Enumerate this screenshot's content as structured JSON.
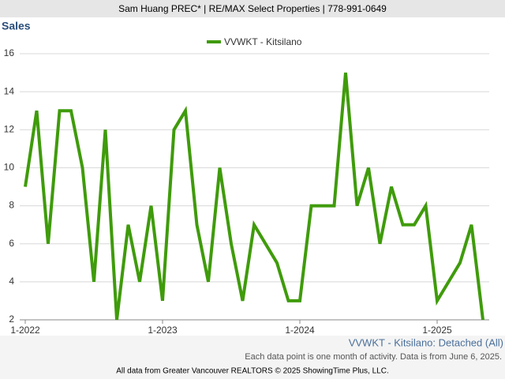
{
  "header": "Sam Huang PREC* | RE/MAX Select Properties | 778-991-0649",
  "chart_data": {
    "type": "line",
    "title": "Sales",
    "categories": [
      "1-2022",
      null,
      null,
      null,
      null,
      null,
      null,
      null,
      null,
      null,
      null,
      null,
      "1-2023",
      null,
      null,
      null,
      null,
      null,
      null,
      null,
      null,
      null,
      null,
      null,
      "1-2024",
      null,
      null,
      null,
      null,
      null,
      null,
      null,
      null,
      null,
      null,
      null,
      "1-2025",
      null,
      null,
      null,
      null
    ],
    "series": [
      {
        "name": "VVWKT - Kitsilano",
        "color": "#3f9b0b",
        "values": [
          9,
          13,
          6,
          13,
          13,
          10,
          4,
          12,
          2,
          7,
          4,
          8,
          3,
          12,
          13,
          7,
          4,
          10,
          6,
          3,
          7,
          6,
          5,
          3,
          3,
          8,
          8,
          8,
          15,
          8,
          10,
          6,
          9,
          7,
          7,
          8,
          3,
          4,
          5,
          7,
          2
        ]
      }
    ],
    "ylim": [
      2,
      16
    ],
    "yticks": [
      2,
      4,
      6,
      8,
      10,
      12,
      14,
      16
    ],
    "grid": true,
    "legend": "top"
  },
  "footer": {
    "subtitle": "VVWKT - Kitsilano: Detached (All)",
    "note": "Each data point is one month of activity. Data is from June 6, 2025.",
    "credit": "All data from Greater Vancouver REALTORS © 2025 ShowingTime Plus, LLC."
  }
}
